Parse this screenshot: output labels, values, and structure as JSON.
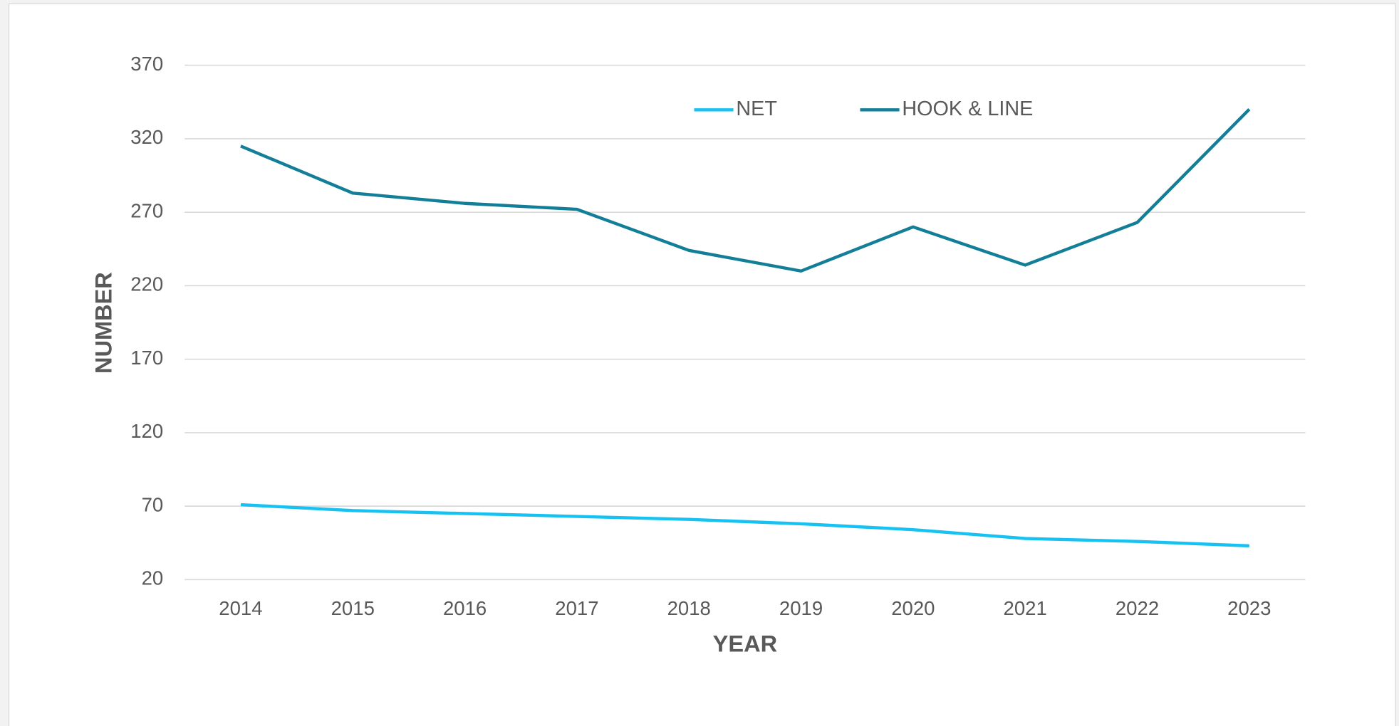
{
  "chart_data": {
    "type": "line",
    "x_label": "YEAR",
    "y_label": "NUMBER",
    "categories": [
      "2014",
      "2015",
      "2016",
      "2017",
      "2018",
      "2019",
      "2020",
      "2021",
      "2022",
      "2023"
    ],
    "series": [
      {
        "name": "NET",
        "color": "#17c2f2",
        "values": [
          71,
          67,
          65,
          63,
          61,
          58,
          54,
          48,
          46,
          43
        ]
      },
      {
        "name": "HOOK & LINE",
        "color": "#137e97",
        "values": [
          315,
          283,
          276,
          272,
          244,
          230,
          260,
          234,
          263,
          340
        ]
      }
    ],
    "ylim": [
      20,
      370
    ],
    "yticks": [
      20,
      70,
      120,
      170,
      220,
      270,
      320,
      370
    ],
    "grid": true,
    "legend": "top"
  }
}
